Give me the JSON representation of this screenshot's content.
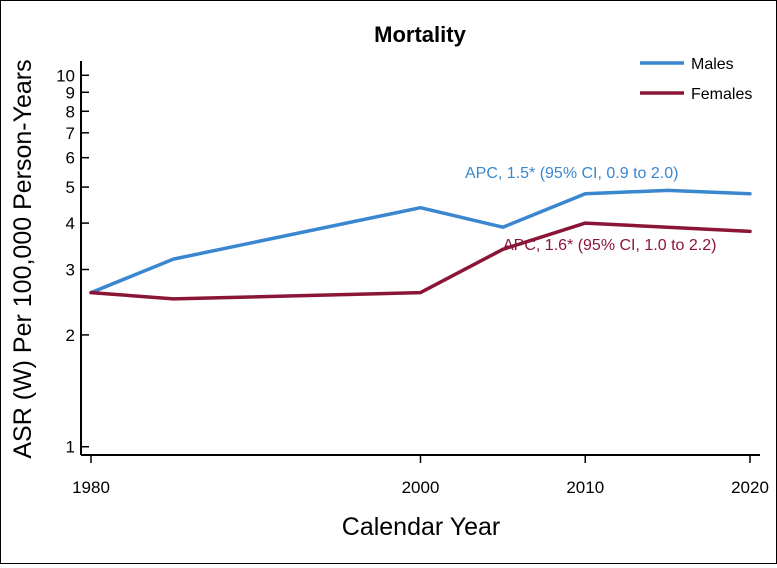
{
  "chart_data": {
    "type": "line",
    "title": "Mortality",
    "xlabel": "Calendar Year",
    "ylabel": "ASR (W) Per 100,000 Person-Years",
    "yscale": "log",
    "xlim": [
      1980,
      2020
    ],
    "ylim": [
      0.95,
      11.2
    ],
    "x_ticks": [
      1980,
      2000,
      2010,
      2020
    ],
    "x_tick_labels": [
      "1980",
      "2000",
      "2010",
      "2020"
    ],
    "y_ticks": [
      1,
      2,
      3,
      4,
      5,
      6,
      7,
      8,
      9,
      10
    ],
    "y_tick_labels": [
      "1",
      "2",
      "3",
      "4",
      "5",
      "6",
      "7",
      "8",
      "9",
      "10"
    ],
    "x": [
      1980,
      1985,
      2000,
      2005,
      2010,
      2015,
      2020
    ],
    "series": [
      {
        "name": "Males",
        "color": "#3A87CF",
        "values": [
          2.6,
          3.2,
          4.4,
          3.9,
          4.8,
          4.9,
          4.8
        ]
      },
      {
        "name": "Females",
        "color": "#8B1537",
        "values": [
          2.6,
          2.5,
          2.6,
          3.4,
          4.0,
          3.9,
          3.8
        ]
      }
    ],
    "legend": {
      "position": "top-right",
      "entries": [
        "Males",
        "Females"
      ]
    },
    "annotations": [
      {
        "text": "APC, 1.5* (95% CI, 0.9 to 2.0)",
        "series": "Males",
        "color": "#3A87CF"
      },
      {
        "text": "APC, 1.6* (95% CI, 1.0 to 2.2)",
        "series": "Females",
        "color": "#8B1537"
      }
    ]
  }
}
